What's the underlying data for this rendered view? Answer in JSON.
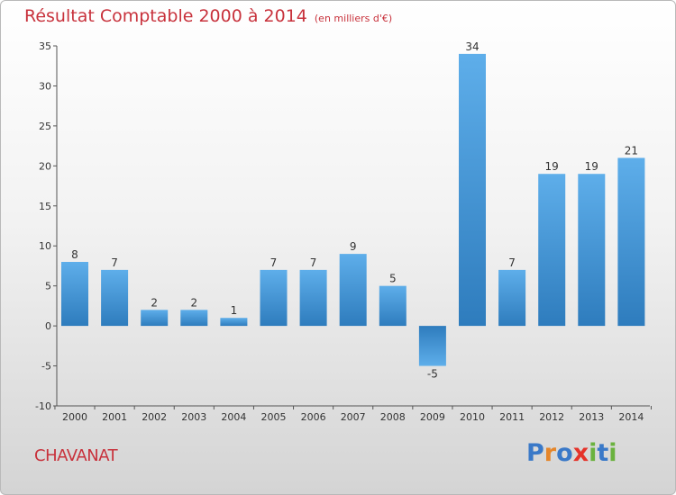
{
  "header": {
    "title": "Résultat Comptable 2000 à 2014",
    "subtitle": "(en milliers d'€)"
  },
  "footer": {
    "commune": "CHAVANAT",
    "logo_letters": [
      "P",
      "r",
      "o",
      "x",
      "i",
      "t",
      "i"
    ],
    "logo_colors": [
      "#3a79c8",
      "#e5862a",
      "#3a79c8",
      "#e5332a",
      "#6ab23e",
      "#3a79c8",
      "#6ab23e"
    ]
  },
  "colors": {
    "title": "#c8323c",
    "bar_light": "#5aaae6",
    "bar_dark": "#2f7fbf"
  },
  "chart_data": {
    "type": "bar",
    "title": "Résultat Comptable 2000 à 2014",
    "subtitle": "(en milliers d'€)",
    "categories": [
      "2000",
      "2001",
      "2002",
      "2003",
      "2004",
      "2005",
      "2006",
      "2007",
      "2008",
      "2009",
      "2010",
      "2011",
      "2012",
      "2013",
      "2014"
    ],
    "values": [
      8,
      7,
      2,
      2,
      1,
      7,
      7,
      9,
      5,
      -5,
      34,
      7,
      19,
      19,
      21
    ],
    "ylim": [
      -10,
      35
    ],
    "yticks": [
      -10,
      -5,
      0,
      5,
      10,
      15,
      20,
      25,
      30,
      35
    ],
    "grid": false,
    "legend": "none"
  }
}
